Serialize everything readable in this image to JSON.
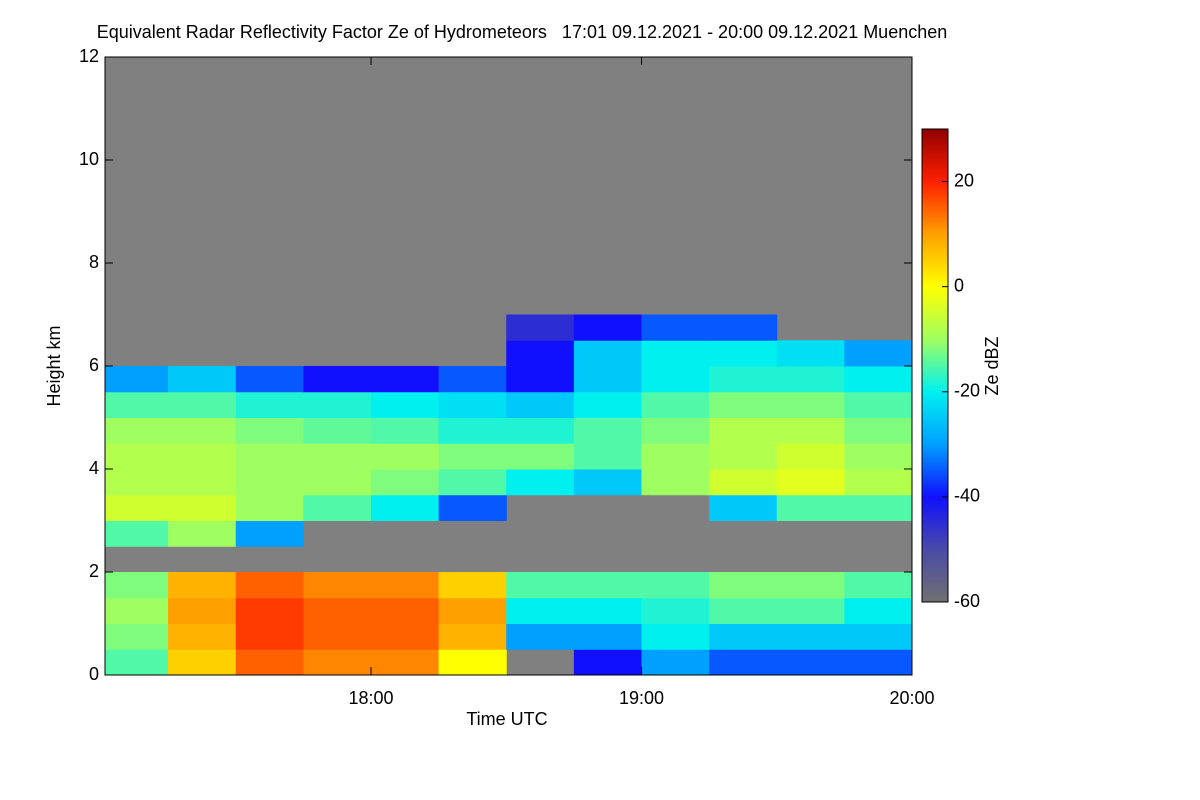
{
  "chart_data": {
    "type": "heatmap",
    "title": "Equivalent Radar Reflectivity Factor Ze of Hydrometeors   17:01 09.12.2021 - 20:00 09.12.2021 Muenchen",
    "x_label": "Time UTC",
    "y_label": "Height km",
    "colorbar_label": "Ze dBZ",
    "xlim": [
      17.0167,
      20.0
    ],
    "xticks": [
      {
        "value": 18,
        "label": "18:00"
      },
      {
        "value": 19,
        "label": "19:00"
      },
      {
        "value": 20,
        "label": "20:00"
      }
    ],
    "ylim": [
      0,
      12
    ],
    "yticks": [
      0,
      2,
      4,
      6,
      8,
      10,
      12
    ],
    "zlim": [
      -60,
      30
    ],
    "zticks": [
      -60,
      -40,
      -20,
      0,
      20
    ],
    "colors": [
      "#707070",
      "#4a4aa8",
      "#1010ff",
      "#00a0ff",
      "#00f0f0",
      "#a0ff60",
      "#ffff00",
      "#ffa000",
      "#ff2000",
      "#900000"
    ],
    "background": "#808080",
    "xbins": [
      17,
      17.25,
      17.5,
      17.75,
      18,
      18.25,
      18.5,
      18.75,
      19,
      19.25,
      19.5,
      19.75,
      20
    ],
    "ybins": [
      0,
      0.5,
      1,
      1.5,
      2,
      2.5,
      3,
      3.5,
      4,
      4.5,
      5,
      5.5,
      6,
      6.5,
      7
    ],
    "z": [
      [
        -15,
        5,
        15,
        12,
        12,
        0,
        null,
        -40,
        -30,
        -35,
        -35,
        -35
      ],
      [
        -12,
        8,
        18,
        15,
        15,
        8,
        -30,
        -30,
        -20,
        -25,
        -25,
        -25
      ],
      [
        -10,
        10,
        18,
        15,
        15,
        10,
        -20,
        -20,
        -18,
        -15,
        -15,
        -20
      ],
      [
        -12,
        8,
        15,
        12,
        12,
        5,
        -15,
        -15,
        -15,
        -12,
        -12,
        -15
      ],
      [
        null,
        null,
        null,
        null,
        null,
        null,
        null,
        null,
        null,
        null,
        null,
        null
      ],
      [
        -15,
        -10,
        -30,
        null,
        null,
        null,
        null,
        null,
        null,
        null,
        null,
        null
      ],
      [
        -5,
        -5,
        -10,
        -15,
        -20,
        -35,
        null,
        null,
        null,
        -25,
        -15,
        -15
      ],
      [
        -8,
        -8,
        -10,
        -10,
        -12,
        -15,
        -20,
        -25,
        -10,
        -5,
        -3,
        -8
      ],
      [
        -8,
        -8,
        -10,
        -10,
        -10,
        -12,
        -12,
        -15,
        -10,
        -8,
        -5,
        -10
      ],
      [
        -10,
        -10,
        -12,
        -14,
        -15,
        -18,
        -18,
        -15,
        -12,
        -8,
        -8,
        -12
      ],
      [
        -15,
        -15,
        -18,
        -18,
        -20,
        -22,
        -25,
        -20,
        -15,
        -12,
        -12,
        -15
      ],
      [
        -30,
        -25,
        -35,
        -40,
        -40,
        -35,
        -40,
        -25,
        -20,
        -18,
        -18,
        -20
      ],
      [
        null,
        null,
        null,
        null,
        null,
        null,
        -40,
        -25,
        -20,
        -20,
        -22,
        -30
      ],
      [
        null,
        null,
        null,
        null,
        null,
        null,
        -45,
        -40,
        -35,
        -35,
        null,
        null
      ]
    ]
  }
}
